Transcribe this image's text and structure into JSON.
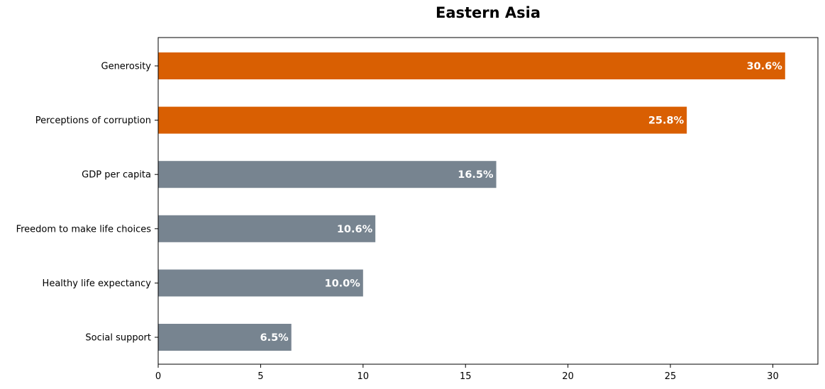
{
  "chart_data": {
    "type": "bar",
    "orientation": "horizontal",
    "title": "Eastern Asia",
    "xlabel": "",
    "ylabel": "",
    "categories": [
      "Generosity",
      "Perceptions of corruption",
      "GDP per capita",
      "Freedom to make life choices",
      "Healthy life expectancy",
      "Social support"
    ],
    "values": [
      30.6,
      25.8,
      16.5,
      10.6,
      10.0,
      6.5
    ],
    "value_labels": [
      "30.6%",
      "25.8%",
      "16.5%",
      "10.6%",
      "10.0%",
      "6.5%"
    ],
    "bar_colors": [
      "#d95f02",
      "#d95f02",
      "#778490",
      "#778490",
      "#778490",
      "#778490"
    ],
    "xlim": [
      0,
      32.2
    ],
    "xticks": [
      0,
      5,
      10,
      15,
      20,
      25,
      30
    ],
    "grid": false,
    "legend": "none"
  }
}
